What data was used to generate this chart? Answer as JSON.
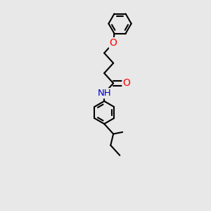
{
  "background_color": "#e8e8e8",
  "bond_color": "#000000",
  "atom_colors": {
    "O": "#ff0000",
    "N": "#0000cd",
    "C": "#000000"
  },
  "bond_width": 1.5,
  "figsize": [
    3.0,
    3.0
  ],
  "dpi": 100,
  "xlim": [
    -1.2,
    1.2
  ],
  "ylim": [
    -2.5,
    1.8
  ]
}
